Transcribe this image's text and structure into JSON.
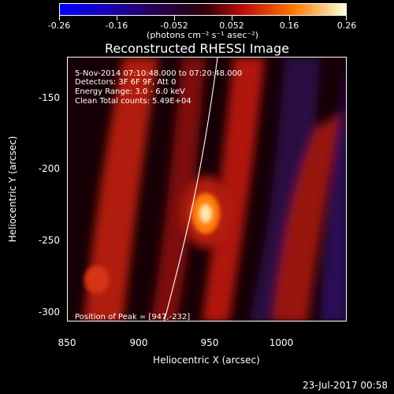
{
  "colorbar": {
    "ticks": [
      "-0.26",
      "-0.16",
      "-0.052",
      "0.052",
      "0.16",
      "0.26"
    ],
    "units": "(photons cm⁻² s⁻¹ asec⁻²)"
  },
  "title": "Reconstructed RHESSI Image",
  "info": {
    "date": "5-Nov-2014 07:10:48.000 to 07:20:48.000",
    "detectors": "Detectors: 3F 6F 9F, Att 0",
    "energy": "Energy Range: 3.0 - 6.0 keV",
    "clean": "Clean    Total counts: 5.49E+04"
  },
  "peak": "Position of Peak = [947,-232]",
  "timestamp": "23-Jul-2017 00:58",
  "chart_data": {
    "type": "heatmap",
    "title": "Reconstructed RHESSI Image",
    "xlabel": "Heliocentric X (arcsec)",
    "ylabel": "Heliocentric Y (arcsec)",
    "xlim": [
      850,
      1040
    ],
    "ylim": [
      -315,
      -130
    ],
    "x_ticks": [
      850,
      900,
      950,
      1000
    ],
    "y_ticks": [
      -150,
      -200,
      -250,
      -300
    ],
    "colorbar_range": [
      -0.26,
      0.26
    ],
    "features": [
      {
        "name": "bright source",
        "x": 947,
        "y": -232,
        "value": 0.26
      },
      {
        "name": "secondary source",
        "x": 870,
        "y": -277,
        "value": 0.14
      }
    ],
    "limb_curve": [
      [
        912,
        -315
      ],
      [
        930,
        -265
      ],
      [
        945,
        -220
      ],
      [
        958,
        -170
      ],
      [
        965,
        -140
      ]
    ],
    "bands": [
      {
        "x_center": 900,
        "value": 0.09
      },
      {
        "x_center": 935,
        "value": 0.07
      },
      {
        "x_center": 975,
        "value": -0.03
      },
      {
        "x_center": 1005,
        "value": 0.06
      },
      {
        "x_center": 1030,
        "value": -0.05
      }
    ]
  }
}
